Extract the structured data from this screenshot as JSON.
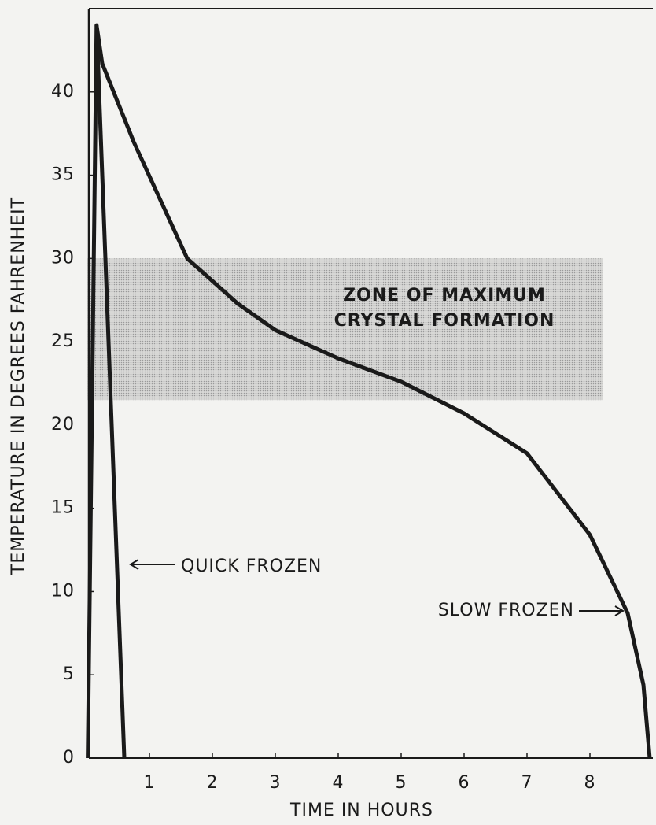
{
  "chart_data": {
    "type": "line",
    "xlabel": "TIME IN HOURS",
    "ylabel": "TEMPERATURE IN DEGREES FAHRENHEIT",
    "xlim": [
      0,
      9
    ],
    "ylim": [
      0,
      45
    ],
    "xticks": [
      1,
      2,
      3,
      4,
      5,
      6,
      7,
      8
    ],
    "yticks": [
      0,
      5,
      10,
      15,
      20,
      25,
      30,
      35,
      40
    ],
    "zone": {
      "label": [
        "ZONE OF MAXIMUM",
        "CRYSTAL FORMATION"
      ],
      "xlim": [
        0,
        8.2
      ],
      "ylim": [
        21.5,
        30
      ],
      "color": "#c9c9c9"
    },
    "series": [
      {
        "name": "QUICK FROZEN",
        "color": "#1a1a1a",
        "x": [
          0.02,
          0.16,
          0.6
        ],
        "values": [
          0,
          44,
          0
        ]
      },
      {
        "name": "SLOW FROZEN",
        "color": "#1a1a1a",
        "x": [
          0.16,
          0.25,
          0.75,
          1.6,
          2.4,
          3,
          4,
          5,
          6,
          7,
          8,
          8.6,
          8.85,
          8.95
        ],
        "values": [
          44,
          41.7,
          37,
          30,
          27.3,
          25.7,
          24,
          22.6,
          20.7,
          18.3,
          13.4,
          8.7,
          4.4,
          0
        ]
      }
    ]
  }
}
